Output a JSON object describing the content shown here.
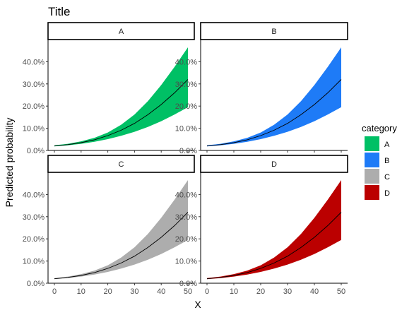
{
  "chart_data": {
    "type": "area",
    "title": "Title",
    "xlabel": "X",
    "ylabel": "Predicted probability",
    "xlim": [
      0,
      50
    ],
    "ylim": [
      0,
      0.5
    ],
    "x_ticks": [
      0,
      10,
      20,
      30,
      40,
      50
    ],
    "y_ticks": [
      0,
      0.1,
      0.2,
      0.3,
      0.4
    ],
    "y_tick_labels": [
      "0.0%",
      "10.0%",
      "20.0%",
      "30.0%",
      "40.0%"
    ],
    "x_tick_labels": [
      "0",
      "10",
      "20",
      "30",
      "40",
      "50"
    ],
    "x": [
      0,
      5,
      10,
      15,
      20,
      25,
      30,
      35,
      40,
      45,
      50
    ],
    "fit": [
      0.02,
      0.026,
      0.035,
      0.048,
      0.067,
      0.091,
      0.122,
      0.161,
      0.207,
      0.26,
      0.32
    ],
    "lower": [
      0.018,
      0.023,
      0.03,
      0.039,
      0.051,
      0.066,
      0.084,
      0.106,
      0.132,
      0.162,
      0.195
    ],
    "upper": [
      0.023,
      0.03,
      0.041,
      0.057,
      0.081,
      0.116,
      0.162,
      0.222,
      0.295,
      0.377,
      0.465
    ],
    "legend_title": "category",
    "legend_position": "right",
    "grid": false,
    "panels": [
      {
        "label": "A",
        "color": "#00C065"
      },
      {
        "label": "B",
        "color": "#1E7BF7"
      },
      {
        "label": "C",
        "color": "#ADADAD"
      },
      {
        "label": "D",
        "color": "#BB0000"
      }
    ]
  }
}
